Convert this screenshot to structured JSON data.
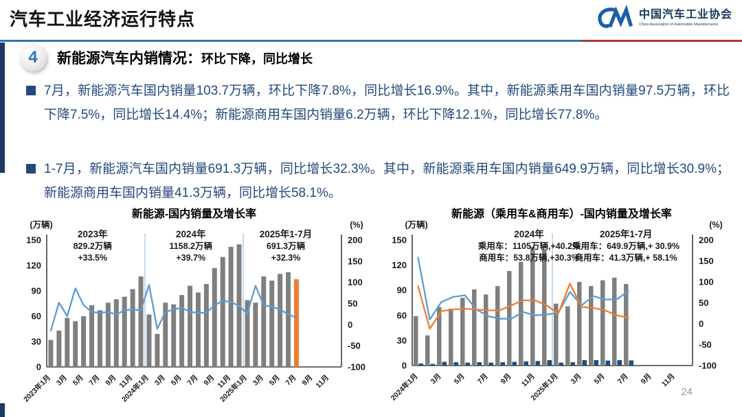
{
  "header": {
    "title": "汽车工业经济运行特点",
    "logo": {
      "name_cn": "中国汽车工业协会",
      "name_en": "China Association of Automobile Manufacturers"
    }
  },
  "section": {
    "number": "4",
    "title": "新能源汽车内销情况：",
    "subtitle": "环比下降，同比增长"
  },
  "bullets": [
    {
      "text": "7月，新能源汽车国内销量103.7万辆，环比下降7.8%，同比增长16.9%。其中，新能源乘用车国内销量97.5万辆，环比下降7.5%，同比增长14.4%；新能源商用车国内销量6.2万辆，环比下降12.1%，同比增长77.8%。"
    },
    {
      "text": "1-7月，新能源汽车国内销量691.3万辆，同比增长32.3%。其中，新能源乘用车国内销量649.9万辆，同比增长30.9%；新能源商用车国内销量41.3万辆，同比增长58.1%。"
    }
  ],
  "page_number": "24",
  "colors": {
    "accent_blue": "#2E74B6",
    "dark_navy": "#1F3864",
    "text_blue": "#24497B",
    "bar_gray": "#7F7F7F",
    "bar_orange": "#ED7D31",
    "bar_navy": "#1F4E79",
    "line_blue": "#5B9BD5",
    "line_orange": "#ED7D31",
    "separator_blue": "#9DC3E6",
    "header_red": "#A63F2E",
    "logo_blue": "#1B5FA8"
  },
  "chart_data": [
    {
      "type": "bar+line",
      "title": "新能源-国内销量及增长率",
      "left_axis": {
        "label": "(万辆)",
        "ticks": [
          150,
          120,
          90,
          60,
          30,
          0
        ],
        "max": 150,
        "min": 0
      },
      "right_axis": {
        "label": "(%)",
        "ticks": [
          200,
          150,
          100,
          50,
          0,
          -50,
          -100
        ],
        "max": 200,
        "min": -100
      },
      "x_tick_labels": [
        "2023年1月",
        "3月",
        "5月",
        "7月",
        "9月",
        "11月",
        "2024年1月",
        "3月",
        "5月",
        "7月",
        "9月",
        "11月",
        "2025年1月",
        "3月",
        "5月",
        "7月",
        "9月",
        "11月"
      ],
      "n_slots": 36,
      "separators_at_slots": [
        12,
        24
      ],
      "series": [
        {
          "name": "新能源汽车国内销量",
          "type": "bar",
          "axis": "left",
          "color": "#7F7F7F",
          "highlight_last_color": "#ED7D31",
          "values": [
            32,
            43,
            58,
            54,
            60,
            73,
            67,
            76,
            80,
            83,
            92,
            107,
            62,
            39,
            76,
            74,
            85,
            96,
            88,
            98,
            117,
            130,
            142,
            145,
            79,
            76,
            107,
            102,
            110,
            112,
            103.7
          ]
        },
        {
          "name": "同比增长率",
          "type": "line",
          "axis": "right",
          "color": "#5B9BD5",
          "values": [
            -14,
            52,
            20,
            86,
            46,
            30,
            28,
            30,
            24,
            34,
            36,
            34,
            94,
            -10,
            30,
            36,
            40,
            30,
            28,
            28,
            46,
            56,
            54,
            44,
            26,
            92,
            46,
            42,
            36,
            24,
            16.9
          ]
        }
      ],
      "annotations": [
        {
          "lines": [
            "2023年",
            "829.2万辆",
            "+33.5%"
          ]
        },
        {
          "lines": [
            "2024年",
            "1158.2万辆",
            "+39.7%"
          ]
        },
        {
          "lines": [
            "2025年1-7月",
            "691.3万辆",
            "+32.3%"
          ]
        }
      ]
    },
    {
      "type": "bar+line",
      "title": "新能源（乘用车&商用车）-国内销量及增长率",
      "left_axis": {
        "label": "(万辆)",
        "ticks": [
          150,
          120,
          90,
          60,
          30,
          0
        ],
        "max": 150,
        "min": 0
      },
      "right_axis": {
        "label": "(%)",
        "ticks": [
          200,
          150,
          100,
          50,
          0,
          -50,
          -100
        ],
        "max": 200,
        "min": -100
      },
      "x_tick_labels": [
        "2024年1月",
        "3月",
        "5月",
        "7月",
        "9月",
        "11月",
        "2025年1月",
        "3月",
        "5月",
        "7月",
        "9月",
        "11月"
      ],
      "n_slots": 24,
      "separators_at_slots": [
        12
      ],
      "series": [
        {
          "name": "乘用车国内销量",
          "type": "bar",
          "axis": "left",
          "color": "#7F7F7F",
          "values": [
            59,
            36,
            70,
            68,
            81,
            91,
            85,
            95,
            113,
            124,
            142,
            139,
            74,
            71,
            100,
            95,
            102,
            105,
            97.5
          ]
        },
        {
          "name": "商用车国内销量",
          "type": "bar",
          "axis": "left",
          "color": "#1F4E79",
          "values": [
            2.5,
            2,
            4.5,
            4,
            3.5,
            4,
            3.5,
            4,
            4.5,
            5,
            5.5,
            6.5,
            3.5,
            4,
            6.5,
            6.5,
            6,
            6.5,
            6.2
          ]
        },
        {
          "name": "商用车同比增速",
          "type": "line",
          "axis": "right",
          "color": "#5B9BD5",
          "values": [
            158,
            10,
            52,
            64,
            68,
            34,
            18,
            12,
            12,
            28,
            20,
            22,
            26,
            76,
            44,
            66,
            58,
            58,
            77.8
          ]
        },
        {
          "name": "乘用车同比增速",
          "type": "line",
          "axis": "right",
          "color": "#ED7D31",
          "values": [
            90,
            -12,
            30,
            34,
            36,
            34,
            32,
            32,
            44,
            56,
            56,
            44,
            24,
            96,
            40,
            38,
            32,
            20,
            14.4
          ]
        }
      ],
      "annotations": [
        {
          "lines": [
            "2024年",
            "乘用车：1105万辆,+40.2%",
            "商用车：53.8万辆,+30.3%"
          ]
        },
        {
          "lines": [
            "2025年1-7月",
            "乘用车：649.9万辆,+ 30.9%",
            "商用车：41.3万辆,+ 58.1%"
          ]
        }
      ]
    }
  ]
}
